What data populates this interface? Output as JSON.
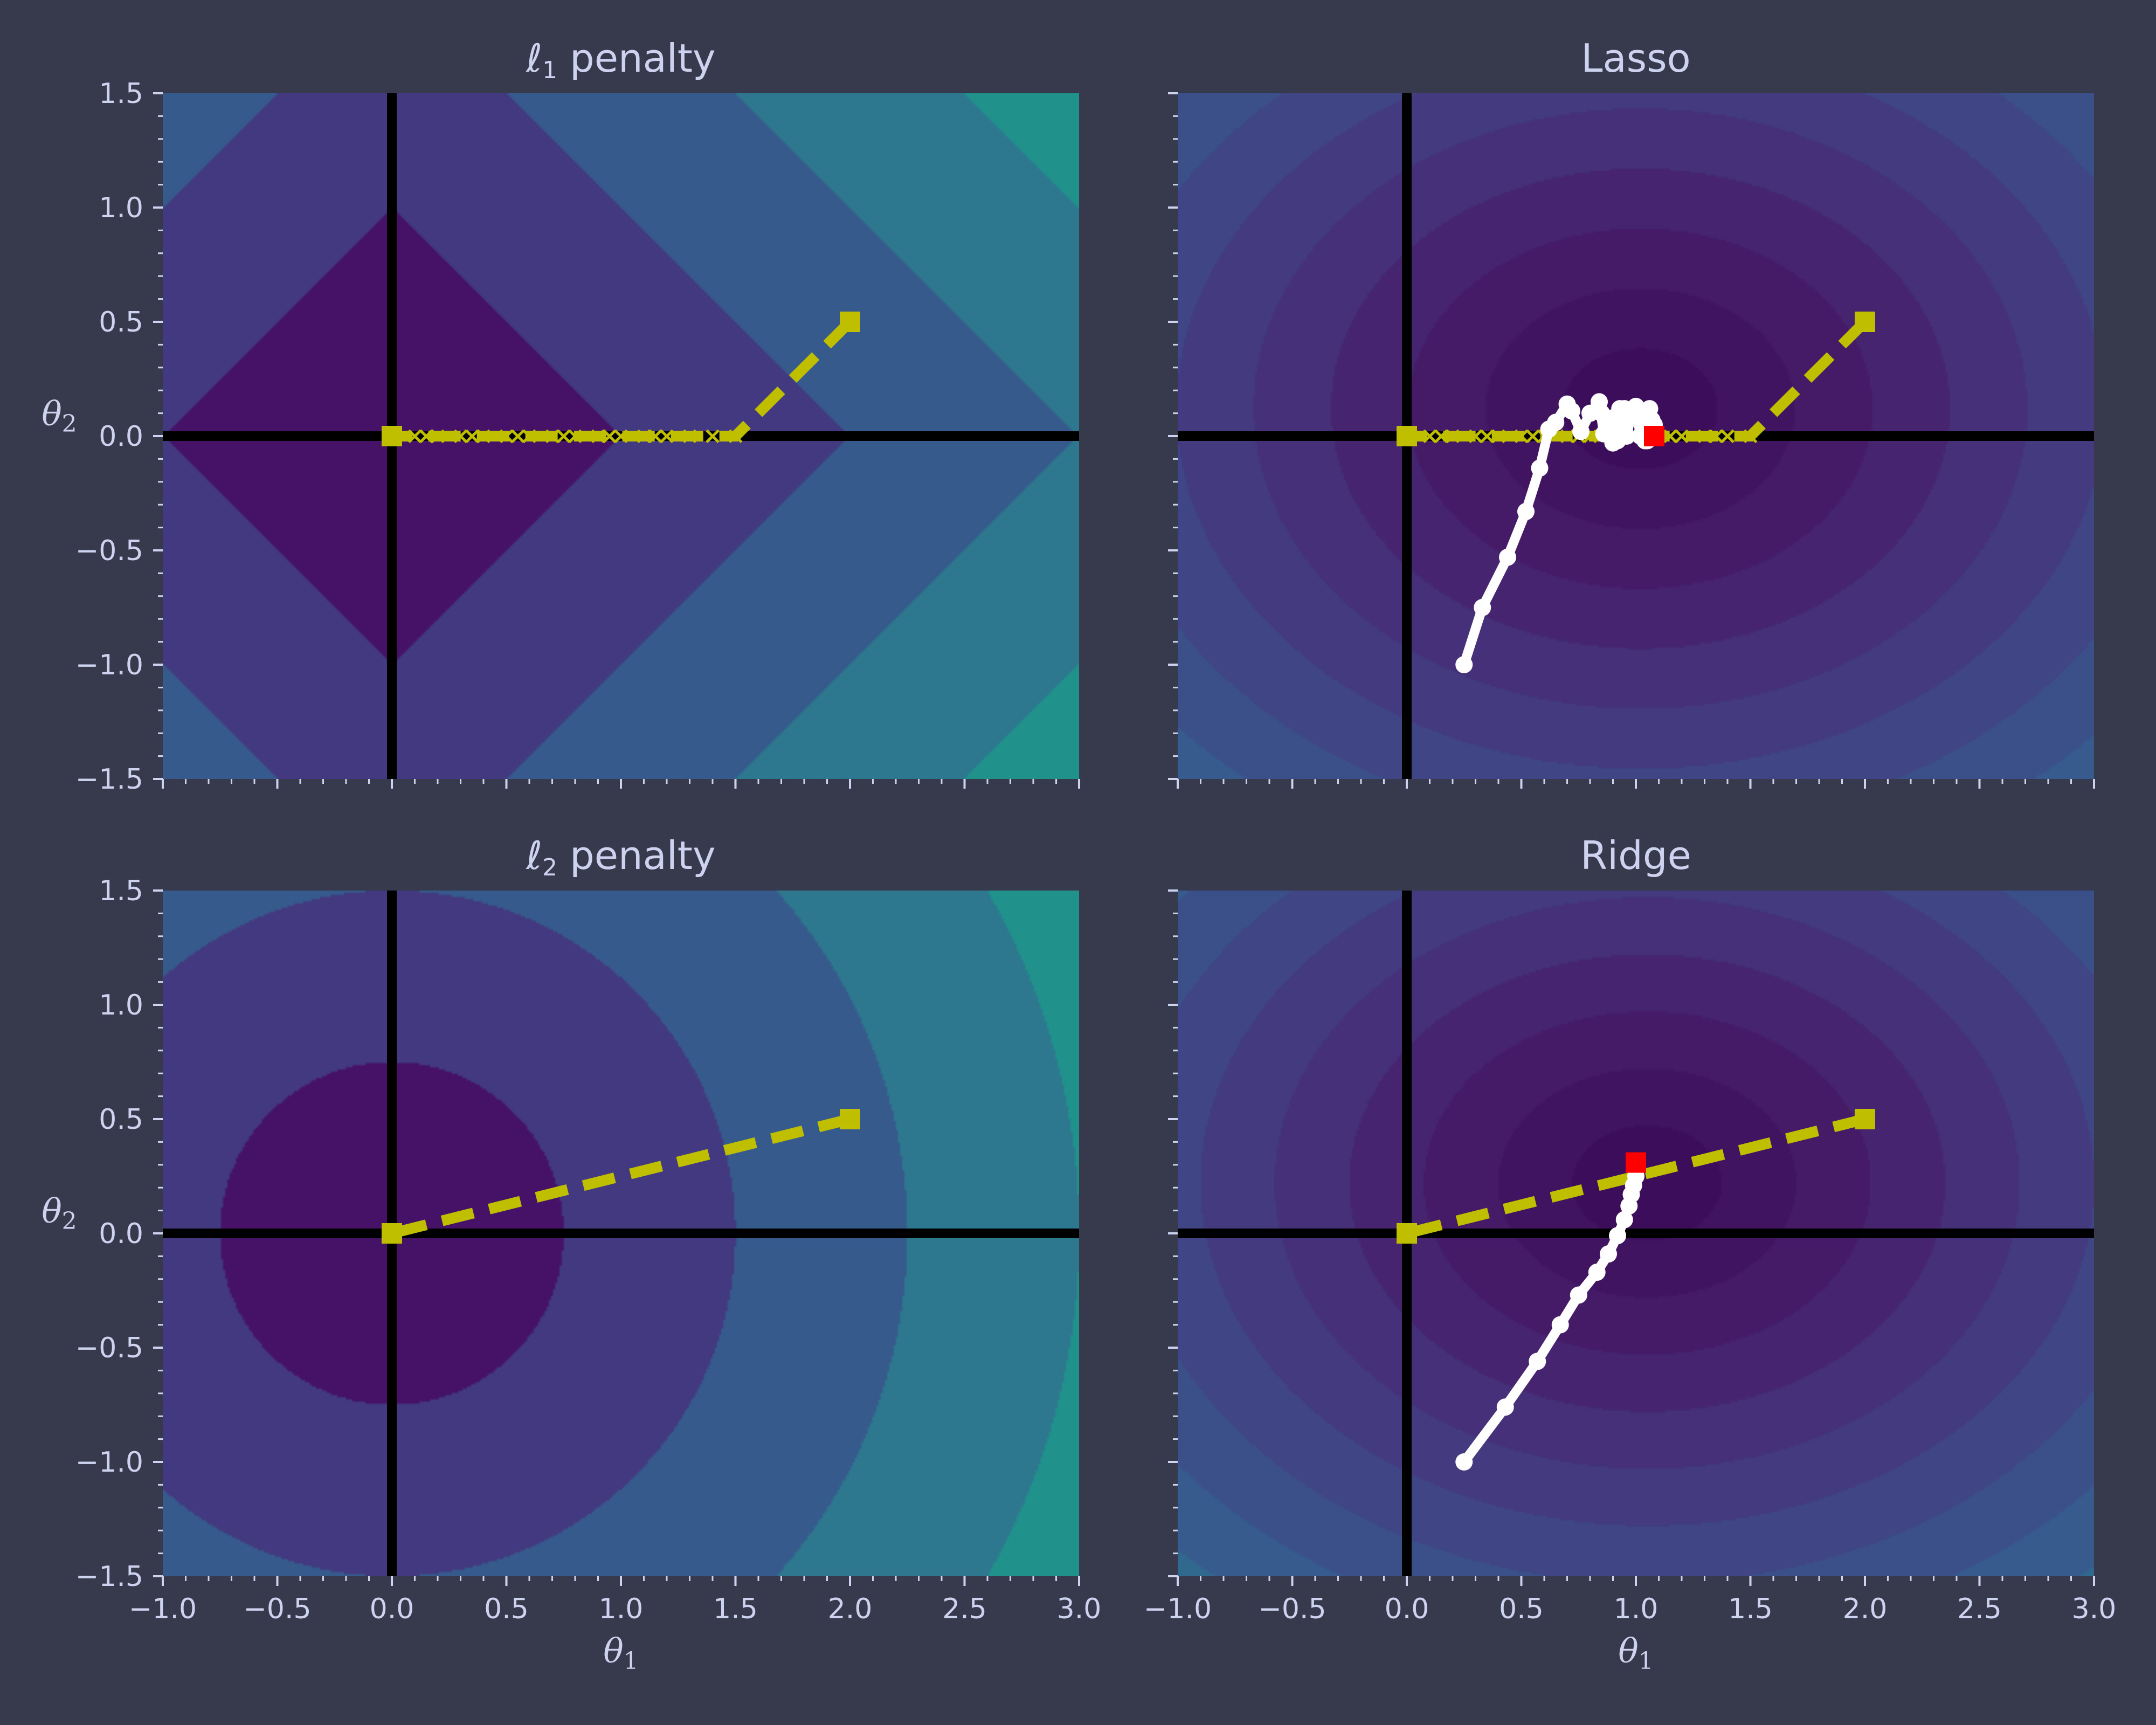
{
  "chart_data": [
    {
      "type": "contour",
      "title_symbol": "ℓ",
      "title_subscript": "1",
      "title_rest": " penalty",
      "ylabel_symbol": "θ",
      "ylabel_subscript": "2",
      "xlabel_symbol": "",
      "xlabel_subscript": "",
      "xlim": [
        -1.0,
        3.0
      ],
      "ylim": [
        -1.5,
        1.5
      ],
      "xticks": [
        "−1.0",
        "−0.5",
        "0.0",
        "0.5",
        "1.0",
        "1.5",
        "2.0",
        "2.5",
        "3.0"
      ],
      "yticks": [
        "1.5",
        "1.0",
        "0.5",
        "0.0",
        "−0.5",
        "−1.0",
        "−1.5"
      ],
      "show_xtick_labels": false,
      "field": "l1",
      "levels": [
        1,
        2,
        3,
        4
      ],
      "colors": [
        "#461268",
        "#423980",
        "#375a8c",
        "#2d788e",
        "#21918c"
      ],
      "yellow_path": {
        "x": [
          2.0,
          1.5,
          1.4,
          1.3,
          1.2,
          1.15,
          1.1,
          1.0,
          0.95,
          0.9,
          0.8,
          0.75,
          0.7,
          0.6,
          0.55,
          0.5,
          0.4,
          0.35,
          0.3,
          0.2,
          0.15,
          0.1,
          0.0
        ],
        "y": [
          0.5,
          0.0,
          0.0,
          0.0,
          0.0,
          0.0,
          0.0,
          0.0,
          0.0,
          0.0,
          0.0,
          0.0,
          0.0,
          0.0,
          0.0,
          0.0,
          0.0,
          0.0,
          0.0,
          0.0,
          0.0,
          0.0,
          0.0
        ],
        "color": "#bfbf00"
      },
      "white_path": null,
      "red_point": null
    },
    {
      "type": "contour",
      "title_symbol": "",
      "title_subscript": "",
      "title_rest": "Lasso",
      "ylabel_symbol": "",
      "ylabel_subscript": "",
      "xlabel_symbol": "",
      "xlabel_subscript": "",
      "xlim": [
        -1.0,
        3.0
      ],
      "ylim": [
        -1.5,
        1.5
      ],
      "xticks": [
        "−1.0",
        "−0.5",
        "0.0",
        "0.5",
        "1.0",
        "1.5",
        "2.0",
        "2.5",
        "3.0"
      ],
      "yticks": [
        "1.5",
        "1.0",
        "0.5",
        "0.0",
        "−0.5",
        "−1.0",
        "−1.5"
      ],
      "show_xtick_labels": false,
      "show_ytick_labels": false,
      "field": "lasso",
      "levels": [
        0.25,
        0.5,
        0.75,
        1.0,
        1.25,
        1.5,
        1.75,
        2.0,
        2.25,
        2.5,
        2.75
      ],
      "colors": [
        "#3b0d5a",
        "#401460",
        "#451a66",
        "#46246f",
        "#453079",
        "#433a80",
        "#404586",
        "#3b5089",
        "#365b8c",
        "#31688e",
        "#2c758e",
        "#21918c"
      ],
      "yellow_path": {
        "x": [
          2.0,
          1.5,
          1.4,
          1.35,
          1.3,
          1.2,
          1.15,
          1.1,
          1.0,
          0.95,
          0.9,
          0.8,
          0.75,
          0.7,
          0.6,
          0.55,
          0.5,
          0.4,
          0.35,
          0.3,
          0.2,
          0.15,
          0.1,
          0.0
        ],
        "y": [
          0.5,
          0.0,
          0.0,
          0.0,
          0.0,
          0.0,
          0.0,
          0.0,
          0.0,
          0.0,
          0.0,
          0.0,
          0.0,
          0.0,
          0.0,
          0.0,
          0.0,
          0.0,
          0.0,
          0.0,
          0.0,
          0.0,
          0.0,
          0.0
        ],
        "color": "#bfbf00"
      },
      "white_path": {
        "x": [
          0.25,
          0.33,
          0.44,
          0.52,
          0.58,
          0.62,
          0.65,
          0.7,
          0.72,
          0.76,
          0.8,
          0.84,
          0.86,
          0.9,
          0.93,
          0.96,
          0.98,
          1.0,
          1.02,
          1.04,
          1.06,
          1.08,
          1.05,
          1.0,
          0.95,
          0.92,
          0.88,
          0.85,
          0.9,
          0.95,
          1.0,
          1.04,
          1.07,
          1.08
        ],
        "y": [
          -1.0,
          -0.75,
          -0.53,
          -0.33,
          -0.14,
          0.03,
          0.06,
          0.14,
          0.11,
          0.02,
          0.1,
          0.15,
          0.01,
          0.08,
          0.12,
          0.0,
          0.1,
          0.13,
          0.0,
          0.11,
          0.12,
          0.05,
          -0.02,
          0.08,
          0.12,
          -0.02,
          0.06,
          0.1,
          -0.03,
          0.04,
          0.11,
          -0.02,
          0.07,
          0.0
        ],
        "color": "#ffffff"
      },
      "red_point": {
        "x": 1.08,
        "y": 0.0,
        "color": "#ff0000"
      }
    },
    {
      "type": "contour",
      "title_symbol": "ℓ",
      "title_subscript": "2",
      "title_rest": " penalty",
      "ylabel_symbol": "θ",
      "ylabel_subscript": "2",
      "xlabel_symbol": "θ",
      "xlabel_subscript": "1",
      "xlim": [
        -1.0,
        3.0
      ],
      "ylim": [
        -1.5,
        1.5
      ],
      "xticks": [
        "−1.0",
        "−0.5",
        "0.0",
        "0.5",
        "1.0",
        "1.5",
        "2.0",
        "2.5",
        "3.0"
      ],
      "yticks": [
        "1.5",
        "1.0",
        "0.5",
        "0.0",
        "−0.5",
        "−1.0",
        "−1.5"
      ],
      "show_xtick_labels": true,
      "field": "l2",
      "levels": [
        0.75,
        1.5,
        2.25,
        3.0
      ],
      "colors": [
        "#461268",
        "#423980",
        "#375a8c",
        "#2d788e",
        "#21918c"
      ],
      "yellow_path": {
        "x": [
          2.0,
          0.0
        ],
        "y": [
          0.5,
          0.0
        ],
        "color": "#bfbf00"
      },
      "white_path": null,
      "red_point": null
    },
    {
      "type": "contour",
      "title_symbol": "",
      "title_subscript": "",
      "title_rest": "Ridge",
      "ylabel_symbol": "",
      "ylabel_subscript": "",
      "xlabel_symbol": "θ",
      "xlabel_subscript": "1",
      "xlim": [
        -1.0,
        3.0
      ],
      "ylim": [
        -1.5,
        1.5
      ],
      "xticks": [
        "−1.0",
        "−0.5",
        "0.0",
        "0.5",
        "1.0",
        "1.5",
        "2.0",
        "2.5",
        "3.0"
      ],
      "yticks": [
        "1.5",
        "1.0",
        "0.5",
        "0.0",
        "−0.5",
        "−1.0",
        "−1.5"
      ],
      "show_xtick_labels": true,
      "show_ytick_labels": false,
      "field": "ridge",
      "levels": [
        0.25,
        0.5,
        0.75,
        1.0,
        1.25,
        1.5,
        1.75,
        2.0,
        2.25,
        2.5,
        2.75
      ],
      "colors": [
        "#3b0d5a",
        "#401460",
        "#451a66",
        "#46246f",
        "#453079",
        "#433a80",
        "#404586",
        "#3b5089",
        "#365b8c",
        "#31688e",
        "#2c758e",
        "#21918c"
      ],
      "yellow_path": {
        "x": [
          2.0,
          0.0
        ],
        "y": [
          0.5,
          0.0
        ],
        "color": "#bfbf00"
      },
      "white_path": {
        "x": [
          0.25,
          0.43,
          0.57,
          0.67,
          0.75,
          0.83,
          0.88,
          0.92,
          0.95,
          0.97,
          0.98,
          0.99,
          1.0,
          1.0
        ],
        "y": [
          -1.0,
          -0.76,
          -0.56,
          -0.4,
          -0.27,
          -0.17,
          -0.09,
          -0.01,
          0.06,
          0.12,
          0.17,
          0.21,
          0.25,
          0.31
        ],
        "color": "#ffffff"
      },
      "red_point": {
        "x": 1.0,
        "y": 0.31,
        "color": "#ff0000"
      }
    }
  ]
}
